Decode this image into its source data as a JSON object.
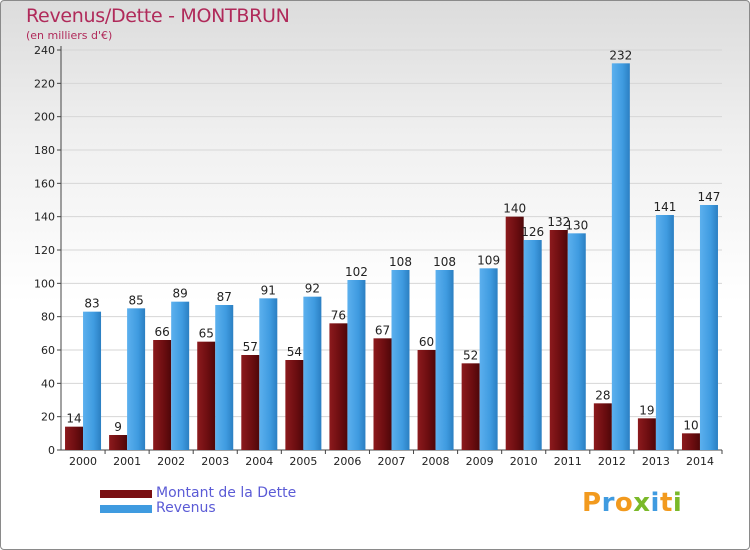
{
  "chart_data": {
    "type": "bar",
    "title": "Revenus/Dette - MONTBRUN",
    "subtitle": "(en milliers d'€)",
    "categories": [
      "2000",
      "2001",
      "2002",
      "2003",
      "2004",
      "2005",
      "2006",
      "2007",
      "2008",
      "2009",
      "2010",
      "2011",
      "2012",
      "2013",
      "2014"
    ],
    "series": [
      {
        "name": "Montant de la Dette",
        "values": [
          14,
          9,
          66,
          65,
          57,
          54,
          76,
          67,
          60,
          52,
          140,
          132,
          28,
          19,
          10
        ],
        "color": "#7a0f12",
        "text_color": "#5b5bd6"
      },
      {
        "name": "Revenus",
        "values": [
          83,
          85,
          89,
          87,
          91,
          92,
          102,
          108,
          108,
          109,
          126,
          130,
          232,
          141,
          147
        ],
        "color": "#3f9be0",
        "text_color": "#5b5bd6"
      }
    ],
    "yticks": [
      0,
      20,
      40,
      60,
      80,
      100,
      120,
      140,
      160,
      180,
      200,
      220,
      240
    ],
    "ylim": [
      0,
      240
    ],
    "grid": true,
    "legend_position": "bottom-left"
  },
  "brand": {
    "text": "Proxiti",
    "letters": [
      "P",
      "r",
      "o",
      "x",
      "i",
      "t",
      "i"
    ],
    "colors": [
      "#f29a1e",
      "#3f9be0",
      "#f29a1e",
      "#7ab929",
      "#3f9be0",
      "#f29a1e",
      "#7ab929"
    ]
  }
}
